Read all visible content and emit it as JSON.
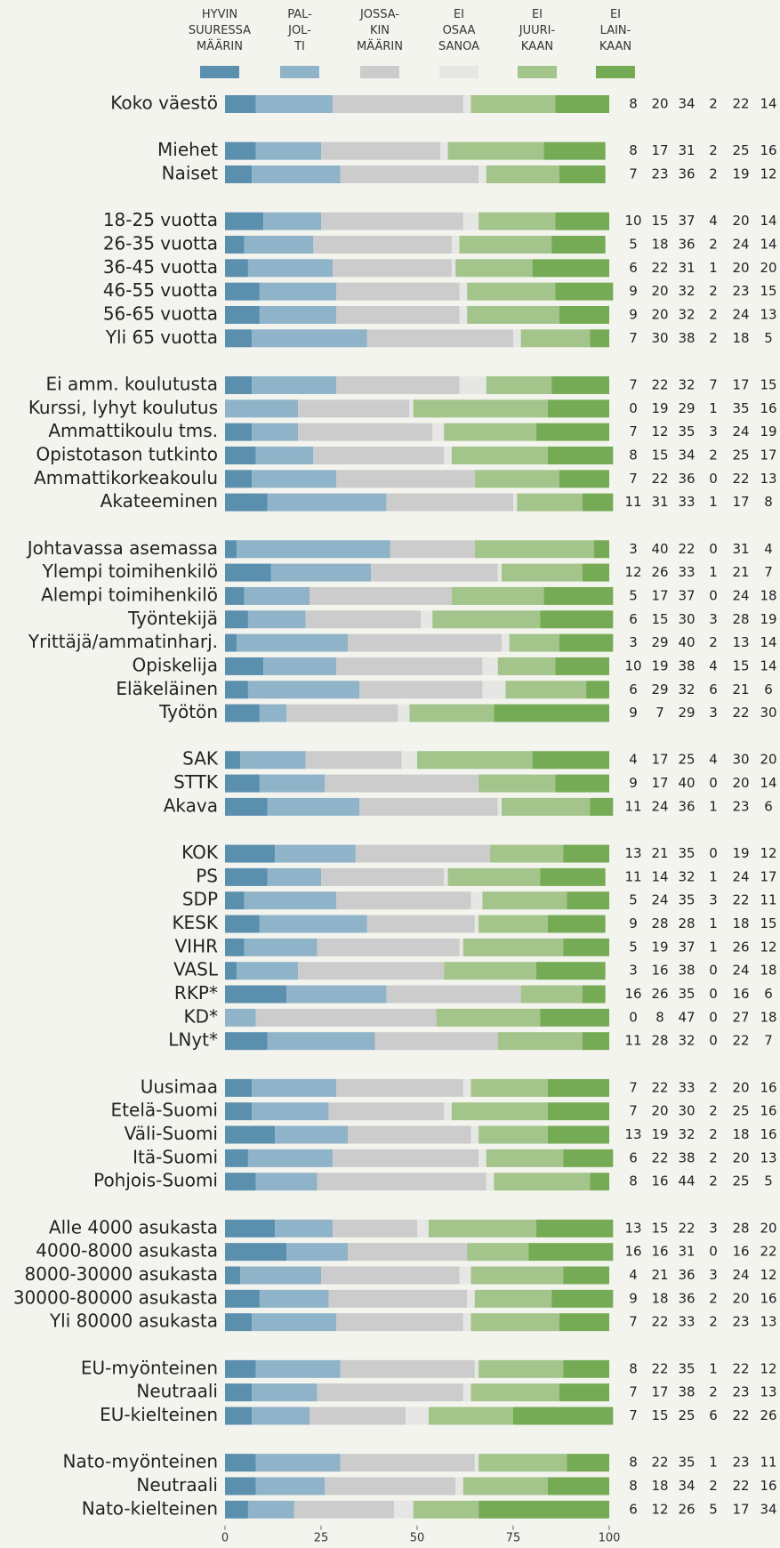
{
  "chart_data": {
    "type": "stacked_bar",
    "orientation": "horizontal",
    "series": [
      {
        "name": "HYVIN\nSUURESSA\nMÄÄRIN",
        "color": "#5b8fae"
      },
      {
        "name": "PAL-\nJOL-\nTI",
        "color": "#8fb3c8"
      },
      {
        "name": "JOSSA-\nKIN\nMÄÄRIN",
        "color": "#cccccc"
      },
      {
        "name": "EI\nOSAA\nSANOA",
        "color": "#e6e6e4"
      },
      {
        "name": "EI\nJUURI-\nKAAN",
        "color": "#a3c48a"
      },
      {
        "name": "EI\nLAIN-\nKAAN",
        "color": "#76ab56"
      }
    ],
    "groups": [
      {
        "categories": [
          "Koko väestö"
        ],
        "values": [
          [
            8,
            20,
            34,
            2,
            22,
            14
          ]
        ]
      },
      {
        "categories": [
          "Miehet",
          "Naiset"
        ],
        "values": [
          [
            8,
            17,
            31,
            2,
            25,
            16
          ],
          [
            7,
            23,
            36,
            2,
            19,
            12
          ]
        ]
      },
      {
        "categories": [
          "18-25 vuotta",
          "26-35 vuotta",
          "36-45 vuotta",
          "46-55 vuotta",
          "56-65 vuotta",
          "Yli 65 vuotta"
        ],
        "values": [
          [
            10,
            15,
            37,
            4,
            20,
            14
          ],
          [
            5,
            18,
            36,
            2,
            24,
            14
          ],
          [
            6,
            22,
            31,
            1,
            20,
            20
          ],
          [
            9,
            20,
            32,
            2,
            23,
            15
          ],
          [
            9,
            20,
            32,
            2,
            24,
            13
          ],
          [
            7,
            30,
            38,
            2,
            18,
            5
          ]
        ]
      },
      {
        "categories": [
          "Ei amm. koulutusta",
          "Kurssi, lyhyt koulutus",
          "Ammattikoulu tms.",
          "Opistotason tutkinto",
          "Ammattikorkeakoulu",
          "Akateeminen"
        ],
        "values": [
          [
            7,
            22,
            32,
            7,
            17,
            15
          ],
          [
            0,
            19,
            29,
            1,
            35,
            16
          ],
          [
            7,
            12,
            35,
            3,
            24,
            19
          ],
          [
            8,
            15,
            34,
            2,
            25,
            17
          ],
          [
            7,
            22,
            36,
            0,
            22,
            13
          ],
          [
            11,
            31,
            33,
            1,
            17,
            8
          ]
        ]
      },
      {
        "categories": [
          "Johtavassa asemassa",
          "Ylempi toimihenkilö",
          "Alempi toimihenkilö",
          "Työntekijä",
          "Yrittäjä/ammatinharj.",
          "Opiskelija",
          "Eläkeläinen",
          "Työtön"
        ],
        "values": [
          [
            3,
            40,
            22,
            0,
            31,
            4
          ],
          [
            12,
            26,
            33,
            1,
            21,
            7
          ],
          [
            5,
            17,
            37,
            0,
            24,
            18
          ],
          [
            6,
            15,
            30,
            3,
            28,
            19
          ],
          [
            3,
            29,
            40,
            2,
            13,
            14
          ],
          [
            10,
            19,
            38,
            4,
            15,
            14
          ],
          [
            6,
            29,
            32,
            6,
            21,
            6
          ],
          [
            9,
            7,
            29,
            3,
            22,
            30
          ]
        ]
      },
      {
        "categories": [
          "SAK",
          "STTK",
          "Akava"
        ],
        "values": [
          [
            4,
            17,
            25,
            4,
            30,
            20
          ],
          [
            9,
            17,
            40,
            0,
            20,
            14
          ],
          [
            11,
            24,
            36,
            1,
            23,
            6
          ]
        ]
      },
      {
        "categories": [
          "KOK",
          "PS",
          "SDP",
          "KESK",
          "VIHR",
          "VASL",
          "RKP*",
          "KD*",
          "LNyt*"
        ],
        "values": [
          [
            13,
            21,
            35,
            0,
            19,
            12
          ],
          [
            11,
            14,
            32,
            1,
            24,
            17
          ],
          [
            5,
            24,
            35,
            3,
            22,
            11
          ],
          [
            9,
            28,
            28,
            1,
            18,
            15
          ],
          [
            5,
            19,
            37,
            1,
            26,
            12
          ],
          [
            3,
            16,
            38,
            0,
            24,
            18
          ],
          [
            16,
            26,
            35,
            0,
            16,
            6
          ],
          [
            0,
            8,
            47,
            0,
            27,
            18
          ],
          [
            11,
            28,
            32,
            0,
            22,
            7
          ]
        ]
      },
      {
        "categories": [
          "Uusimaa",
          "Etelä-Suomi",
          "Väli-Suomi",
          "Itä-Suomi",
          "Pohjois-Suomi"
        ],
        "values": [
          [
            7,
            22,
            33,
            2,
            20,
            16
          ],
          [
            7,
            20,
            30,
            2,
            25,
            16
          ],
          [
            13,
            19,
            32,
            2,
            18,
            16
          ],
          [
            6,
            22,
            38,
            2,
            20,
            13
          ],
          [
            8,
            16,
            44,
            2,
            25,
            5
          ]
        ]
      },
      {
        "categories": [
          "Alle 4000 asukasta",
          "4000-8000 asukasta",
          "8000-30000 asukasta",
          "30000-80000 asukasta",
          "Yli 80000 asukasta"
        ],
        "values": [
          [
            13,
            15,
            22,
            3,
            28,
            20
          ],
          [
            16,
            16,
            31,
            0,
            16,
            22
          ],
          [
            4,
            21,
            36,
            3,
            24,
            12
          ],
          [
            9,
            18,
            36,
            2,
            20,
            16
          ],
          [
            7,
            22,
            33,
            2,
            23,
            13
          ]
        ]
      },
      {
        "categories": [
          "EU-myönteinen",
          "Neutraali",
          "EU-kielteinen"
        ],
        "values": [
          [
            8,
            22,
            35,
            1,
            22,
            12
          ],
          [
            7,
            17,
            38,
            2,
            23,
            13
          ],
          [
            7,
            15,
            25,
            6,
            22,
            26
          ]
        ]
      },
      {
        "categories": [
          "Nato-myönteinen",
          "Neutraali",
          "Nato-kielteinen"
        ],
        "values": [
          [
            8,
            22,
            35,
            1,
            23,
            11
          ],
          [
            8,
            18,
            34,
            2,
            22,
            16
          ],
          [
            6,
            12,
            26,
            5,
            17,
            34
          ]
        ]
      }
    ],
    "xlim": [
      0,
      100
    ],
    "xticks": [
      0,
      25,
      50,
      75,
      100
    ]
  }
}
